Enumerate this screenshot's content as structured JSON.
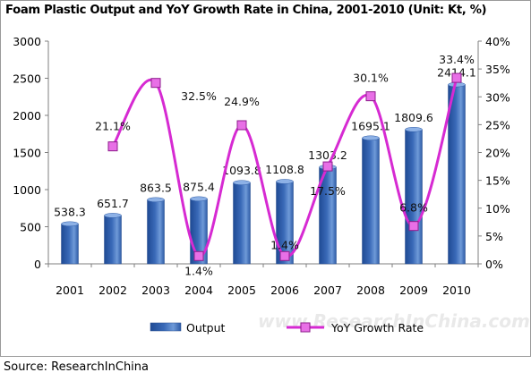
{
  "chart_data": {
    "type": "bar",
    "title": "Foam Plastic Output and YoY Growth Rate in China, 2001-2010 (Unit: Kt, %)",
    "categories": [
      "2001",
      "2002",
      "2003",
      "2004",
      "2005",
      "2006",
      "2007",
      "2008",
      "2009",
      "2010"
    ],
    "series": [
      {
        "name": "Output",
        "type": "bar",
        "axis": "left",
        "values": [
          538.3,
          651.7,
          863.5,
          875.4,
          1093.8,
          1108.8,
          1303.2,
          1695.1,
          1809.6,
          2414.1
        ],
        "labels": [
          "538.3",
          "651.7",
          "863.5",
          "875.4",
          "1093.8",
          "1108.8",
          "1303.2",
          "1695.1",
          "1809.6",
          "2414.1"
        ],
        "color": "#3a6ab8"
      },
      {
        "name": "YoY Growth Rate",
        "type": "line",
        "axis": "right",
        "values": [
          null,
          21.1,
          32.5,
          1.4,
          24.9,
          1.4,
          17.5,
          30.1,
          6.8,
          33.4
        ],
        "labels": [
          "",
          "21.1%",
          "32.5%",
          "1.4%",
          "24.9%",
          "1.4%",
          "17.5%",
          "30.1%",
          "6.8%",
          "33.4%"
        ],
        "color": "#d62ad2",
        "marker_color": "#e86fe6"
      }
    ],
    "y_left": {
      "min": 0,
      "max": 3000,
      "ticks": [
        "0",
        "500",
        "1000",
        "1500",
        "2000",
        "2500",
        "3000"
      ]
    },
    "y_right": {
      "min": 0,
      "max": 40,
      "ticks": [
        "0%",
        "5%",
        "10%",
        "15%",
        "20%",
        "25%",
        "30%",
        "35%",
        "40%"
      ]
    },
    "grid": false,
    "legend_position": "bottom"
  },
  "watermark": "www.ResearchInChina.com",
  "source": "Source: ResearchInChina"
}
